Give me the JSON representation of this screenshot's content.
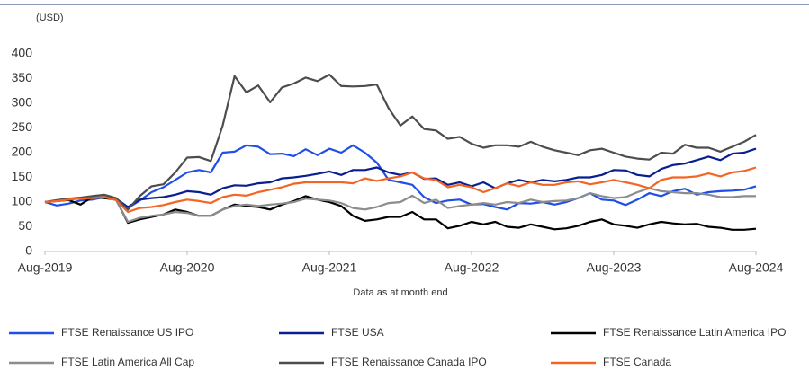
{
  "chart_data": {
    "type": "line",
    "y_unit": "(USD)",
    "x_label": "Data as at month end",
    "x": [
      "2019-08",
      "2019-09",
      "2019-10",
      "2019-11",
      "2019-12",
      "2020-01",
      "2020-02",
      "2020-03",
      "2020-04",
      "2020-05",
      "2020-06",
      "2020-07",
      "2020-08",
      "2020-09",
      "2020-10",
      "2020-11",
      "2020-12",
      "2021-01",
      "2021-02",
      "2021-03",
      "2021-04",
      "2021-05",
      "2021-06",
      "2021-07",
      "2021-08",
      "2021-09",
      "2021-10",
      "2021-11",
      "2021-12",
      "2022-01",
      "2022-02",
      "2022-03",
      "2022-04",
      "2022-05",
      "2022-06",
      "2022-07",
      "2022-08",
      "2022-09",
      "2022-10",
      "2022-11",
      "2022-12",
      "2023-01",
      "2023-02",
      "2023-03",
      "2023-04",
      "2023-05",
      "2023-06",
      "2023-07",
      "2023-08",
      "2023-09",
      "2023-10",
      "2023-11",
      "2023-12",
      "2024-01",
      "2024-02",
      "2024-03",
      "2024-04",
      "2024-05",
      "2024-06",
      "2024-07",
      "2024-08"
    ],
    "xlim": [
      "2019-08",
      "2024-08"
    ],
    "xticks": [
      {
        "value": "2019-08",
        "label": "Aug-2019"
      },
      {
        "value": "2020-08",
        "label": "Aug-2020"
      },
      {
        "value": "2021-08",
        "label": "Aug-2021"
      },
      {
        "value": "2022-08",
        "label": "Aug-2022"
      },
      {
        "value": "2023-08",
        "label": "Aug-2023"
      },
      {
        "value": "2024-08",
        "label": "Aug-2024"
      }
    ],
    "ylim": [
      0,
      400
    ],
    "yticks": [
      0,
      50,
      100,
      150,
      200,
      250,
      300,
      350,
      400
    ],
    "grid": false,
    "series": [
      {
        "name": "FTSE Renaissance US IPO",
        "color": "#1f4fe8",
        "values": [
          100,
          93,
          97,
          103,
          105,
          110,
          104,
          88,
          103,
          120,
          130,
          145,
          160,
          165,
          160,
          200,
          202,
          215,
          212,
          197,
          198,
          193,
          207,
          195,
          208,
          200,
          215,
          200,
          180,
          145,
          140,
          135,
          110,
          98,
          103,
          105,
          95,
          96,
          90,
          85,
          98,
          97,
          100,
          95,
          100,
          108,
          118,
          105,
          103,
          94,
          105,
          118,
          112,
          122,
          127,
          115,
          120,
          122,
          123,
          125,
          132
        ]
      },
      {
        "name": "FTSE USA",
        "color": "#0a1f8f",
        "values": [
          100,
          103,
          106,
          108,
          110,
          113,
          107,
          90,
          105,
          108,
          110,
          115,
          122,
          120,
          115,
          128,
          134,
          133,
          138,
          140,
          148,
          150,
          153,
          157,
          162,
          155,
          165,
          165,
          170,
          160,
          155,
          160,
          147,
          148,
          135,
          140,
          132,
          140,
          128,
          138,
          145,
          140,
          145,
          142,
          145,
          150,
          150,
          155,
          165,
          164,
          155,
          152,
          167,
          175,
          178,
          185,
          192,
          185,
          198,
          200,
          208
        ]
      },
      {
        "name": "FTSE Renaissance Latin America IPO",
        "color": "#000000",
        "values": [
          100,
          102,
          104,
          95,
          110,
          108,
          105,
          58,
          65,
          70,
          75,
          85,
          80,
          72,
          72,
          85,
          95,
          92,
          90,
          85,
          95,
          102,
          112,
          105,
          100,
          92,
          72,
          62,
          65,
          70,
          70,
          80,
          65,
          65,
          47,
          52,
          60,
          55,
          60,
          50,
          48,
          55,
          50,
          45,
          47,
          52,
          60,
          65,
          55,
          52,
          48,
          55,
          60,
          57,
          55,
          56,
          50,
          48,
          44,
          44,
          46
        ]
      },
      {
        "name": "FTSE Latin America All Cap",
        "color": "#8c8c8c",
        "values": [
          100,
          102,
          105,
          108,
          110,
          112,
          104,
          60,
          68,
          72,
          75,
          80,
          78,
          72,
          72,
          85,
          92,
          95,
          92,
          95,
          97,
          100,
          107,
          105,
          103,
          98,
          88,
          85,
          90,
          98,
          100,
          113,
          98,
          105,
          88,
          92,
          95,
          98,
          95,
          100,
          98,
          105,
          100,
          102,
          103,
          108,
          118,
          112,
          108,
          110,
          120,
          128,
          122,
          120,
          118,
          118,
          115,
          110,
          110,
          112,
          112
        ]
      },
      {
        "name": "FTSE Renaissance Canada IPO",
        "color": "#4d4d4d",
        "values": [
          100,
          104,
          107,
          109,
          112,
          115,
          108,
          85,
          112,
          132,
          136,
          160,
          190,
          191,
          183,
          255,
          355,
          322,
          336,
          302,
          332,
          340,
          352,
          345,
          358,
          335,
          334,
          335,
          338,
          290,
          255,
          273,
          248,
          245,
          228,
          232,
          218,
          210,
          215,
          215,
          212,
          222,
          212,
          205,
          200,
          195,
          205,
          208,
          200,
          192,
          188,
          186,
          200,
          198,
          216,
          210,
          210,
          202,
          212,
          222,
          236
        ]
      },
      {
        "name": "FTSE Canada",
        "color": "#f26522",
        "values": [
          100,
          102,
          105,
          107,
          108,
          110,
          104,
          80,
          88,
          90,
          94,
          100,
          105,
          102,
          98,
          110,
          115,
          113,
          120,
          125,
          130,
          137,
          140,
          140,
          140,
          140,
          138,
          148,
          143,
          148,
          152,
          160,
          148,
          145,
          130,
          135,
          130,
          120,
          128,
          138,
          132,
          140,
          135,
          135,
          140,
          142,
          136,
          140,
          145,
          140,
          135,
          128,
          145,
          150,
          150,
          152,
          158,
          152,
          160,
          163,
          170
        ]
      }
    ]
  }
}
